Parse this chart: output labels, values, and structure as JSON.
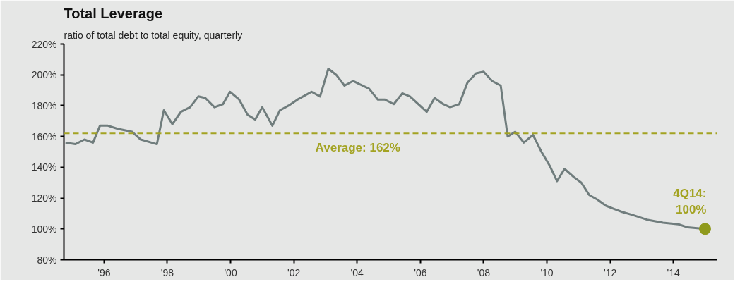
{
  "chart_data": {
    "type": "line",
    "title": "Total Leverage",
    "subtitle": "ratio of total debt to total equity, quarterly",
    "xlim": [
      1994.73,
      2015.38
    ],
    "ylim": [
      80,
      220
    ],
    "xticks": [
      {
        "value": 1996,
        "label": "'96"
      },
      {
        "value": 1998,
        "label": "'98"
      },
      {
        "value": 2000,
        "label": "'00"
      },
      {
        "value": 2002,
        "label": "'02"
      },
      {
        "value": 2004,
        "label": "'04"
      },
      {
        "value": 2006,
        "label": "'06"
      },
      {
        "value": 2008,
        "label": "'08"
      },
      {
        "value": 2010,
        "label": "'10"
      },
      {
        "value": 2012,
        "label": "'12"
      },
      {
        "value": 2014,
        "label": "'14"
      }
    ],
    "yticks": [
      {
        "value": 80,
        "label": "80%"
      },
      {
        "value": 100,
        "label": "100%"
      },
      {
        "value": 120,
        "label": "120%"
      },
      {
        "value": 140,
        "label": "140%"
      },
      {
        "value": 160,
        "label": "160%"
      },
      {
        "value": 180,
        "label": "180%"
      },
      {
        "value": 200,
        "label": "200%"
      },
      {
        "value": 220,
        "label": "220%"
      }
    ],
    "series": [
      {
        "color": "#707d7d",
        "x": [
          1994.78,
          1995.09,
          1995.38,
          1995.65,
          1995.87,
          1996.12,
          1996.43,
          1996.89,
          1997.16,
          1997.67,
          1997.89,
          1998.16,
          1998.43,
          1998.72,
          1998.98,
          1999.2,
          1999.49,
          1999.76,
          1999.98,
          2000.27,
          2000.54,
          2000.78,
          2001.0,
          2001.32,
          2001.56,
          2001.83,
          2002.12,
          2002.56,
          2002.83,
          2003.09,
          2003.34,
          2003.6,
          2003.87,
          2004.38,
          2004.65,
          2004.87,
          2005.16,
          2005.43,
          2005.67,
          2006.2,
          2006.45,
          2006.72,
          2006.94,
          2007.23,
          2007.49,
          2007.76,
          2008.0,
          2008.27,
          2008.54,
          2008.76,
          2009.0,
          2009.27,
          2009.56,
          2009.83,
          2010.09,
          2010.32,
          2010.56,
          2010.83,
          2011.09,
          2011.34,
          2011.6,
          2011.87,
          2012.12,
          2012.38,
          2012.72,
          2013.16,
          2013.67,
          2014.16,
          2014.45,
          2015.0
        ],
        "values": [
          156,
          155,
          158,
          156,
          167,
          167,
          165,
          163,
          158,
          155,
          177,
          168,
          176,
          179,
          186,
          185,
          179,
          181,
          189,
          184,
          174,
          171,
          179,
          167,
          177,
          180,
          184,
          189,
          186,
          204,
          200,
          193,
          196,
          191,
          184,
          184,
          181,
          188,
          186,
          176,
          185,
          181,
          179,
          181,
          195,
          201,
          202,
          196,
          193,
          160,
          163,
          156,
          161,
          150,
          141,
          131,
          139,
          134,
          130,
          122,
          119,
          115,
          113,
          111,
          109,
          106,
          104,
          103,
          101,
          100
        ]
      },
      {
        "type": "scatter",
        "color": "#8f9a1c",
        "x": [
          2015.0
        ],
        "values": [
          100
        ]
      }
    ],
    "ref_lines": [
      {
        "axis": "y",
        "value": 162,
        "label": "Average: 162%",
        "color": "#a3a322",
        "line_style": "dashed"
      }
    ],
    "annotations": [
      {
        "text": "4Q14:\n100%",
        "x": 2015.0,
        "y": 100
      }
    ]
  }
}
